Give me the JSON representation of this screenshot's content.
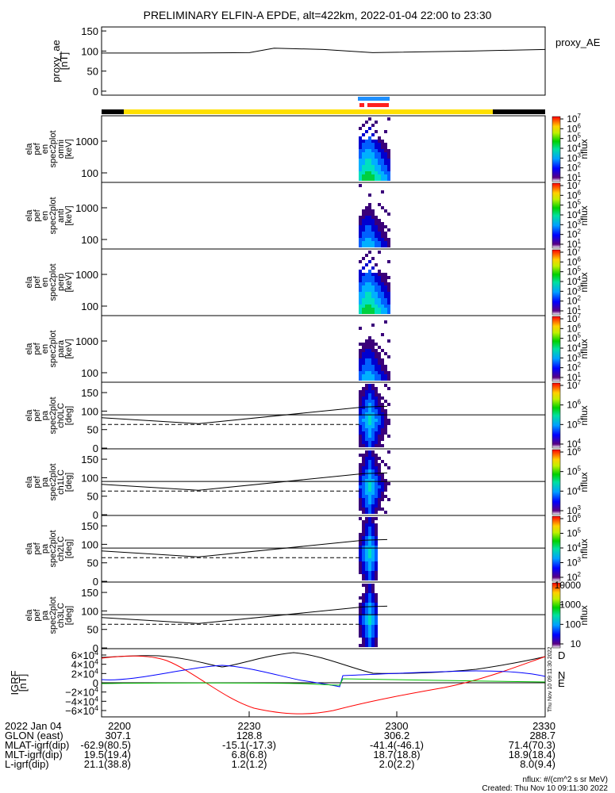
{
  "title": "PRELIMINARY ELFIN-A EPDE, alt=422km, 2022-01-04 22:00 to 23:30",
  "colors": {
    "bar_yellow": "#ffe000",
    "bar_black": "#000000",
    "bar_blue": "#1e90ff",
    "bar_red": "#ff2020",
    "igrf_D": "#ff0000",
    "igrf_N": "#0000ff",
    "igrf_E": "#00c000",
    "igrf_total": "#000000"
  },
  "chart_data": [
    {
      "type": "line",
      "panel": "proxy_ae",
      "ylabel": "proxy_ae\n[nT]",
      "legend": "proxy_AE",
      "ylim": [
        -10,
        160
      ],
      "yticks": [
        "150",
        "100",
        "50",
        "0"
      ],
      "x": [
        "22:00",
        "22:15",
        "22:30",
        "22:35",
        "22:45",
        "22:55",
        "23:00",
        "23:15",
        "23:30"
      ],
      "values": [
        95,
        95,
        96,
        107,
        104,
        96,
        97,
        100,
        104
      ]
    },
    {
      "type": "heatmap",
      "panel": "omni",
      "ylabel": "ela\npef\nen\nspec2plot\nomni\n[keV]",
      "yticks": [
        "1000",
        "100"
      ],
      "zlabel": "nflux",
      "zticks": [
        "10^7",
        "10^6",
        "10^5",
        "10^4",
        "10^3",
        "10^2",
        "10^1"
      ]
    },
    {
      "type": "heatmap",
      "panel": "anti",
      "ylabel": "ela\npef\nen\nspec2plot\nanti\n[keV]",
      "yticks": [
        "1000",
        "100"
      ],
      "zlabel": "nflux",
      "zticks": [
        "10^7",
        "10^6",
        "10^5",
        "10^4",
        "10^3",
        "10^2",
        "10^1"
      ]
    },
    {
      "type": "heatmap",
      "panel": "perp",
      "ylabel": "ela\npef\nen\nspec2plot\nperp\n[keV]",
      "yticks": [
        "1000",
        "100"
      ],
      "zlabel": "nflux",
      "zticks": [
        "10^7",
        "10^6",
        "10^5",
        "10^4",
        "10^3",
        "10^2",
        "10^1"
      ]
    },
    {
      "type": "heatmap",
      "panel": "para",
      "ylabel": "ela\npef\nen\nspec2plot\npara\n[keV]",
      "yticks": [
        "1000",
        "100"
      ],
      "zlabel": "nflux",
      "zticks": [
        "10^7",
        "10^6",
        "10^5",
        "10^4",
        "10^3",
        "10^2",
        "10^1"
      ]
    },
    {
      "type": "heatmap",
      "panel": "ch0LC",
      "ylabel": "ela\npef\npa\nspec2plot\nch0LC\n[deg]",
      "yticks": [
        "150",
        "100",
        "50",
        "0"
      ],
      "zlabel": "nflux",
      "zticks": [
        "10^7",
        "10^6",
        "10^5",
        "10^4"
      ]
    },
    {
      "type": "heatmap",
      "panel": "ch1LC",
      "ylabel": "ela\npef\npa\nspec2plot\nch1LC\n[deg]",
      "yticks": [
        "150",
        "100",
        "50",
        "0"
      ],
      "zlabel": "nflux",
      "zticks": [
        "10^6",
        "10^5",
        "10^4",
        "10^3"
      ]
    },
    {
      "type": "heatmap",
      "panel": "ch2LC",
      "ylabel": "ela\npef\npa\nspec2plot\nch2LC\n[deg]",
      "yticks": [
        "150",
        "100",
        "50",
        "0"
      ],
      "zlabel": "nflux",
      "zticks": [
        "10^6",
        "10^5",
        "10^4",
        "10^3",
        "10^2"
      ]
    },
    {
      "type": "heatmap",
      "panel": "ch3LC",
      "ylabel": "ela\npef\npa\nspec2plot\nch3LC\n[deg]",
      "yticks": [
        "150",
        "100",
        "50",
        "0"
      ],
      "zlabel": "nflux",
      "zticks": [
        "10000",
        "1000",
        "100",
        "10"
      ]
    },
    {
      "type": "line",
      "panel": "igrf",
      "ylabel": "IGRF\n[nT]",
      "ylim": [
        -65000,
        65000
      ],
      "yticks": [
        "6×10^4",
        "4×10^4",
        "2×10^4",
        "0",
        "−2×10^4",
        "−4×10^4",
        "−6×10^4"
      ],
      "series_labels": [
        "D",
        "N",
        "E"
      ]
    }
  ],
  "xaxis": {
    "ticks": [
      "2200",
      "2230",
      "2300",
      "2330"
    ],
    "rows": [
      {
        "label": "2022 Jan 04",
        "values": [
          "2200",
          "2230",
          "2300",
          "2330"
        ]
      },
      {
        "label": "GLON (east)",
        "values": [
          "307.1",
          "128.8",
          "306.2",
          "288.7"
        ]
      },
      {
        "label": "MLAT-igrf(dip)",
        "values": [
          "-62.9(80.5)",
          "-15.1(-17.3)",
          "-41.4(-46.1)",
          "71.4(70.3)"
        ]
      },
      {
        "label": "MLT-igrf(dip)",
        "values": [
          "19.5(19.4)",
          "6.8(6.8)",
          "18.7(18.8)",
          "18.9(18.4)"
        ]
      },
      {
        "label": "L-igrf(dip)",
        "values": [
          "21.1(38.8)",
          "1.2(1.2)",
          "2.0(2.2)",
          "8.0(9.4)"
        ]
      }
    ]
  },
  "footer": {
    "units": "nflux: #/(cm^2 s sr MeV)",
    "created": "Created: Thu Nov 10 09:11:30 2022",
    "side_stamp": "Thu Nov 10 09:11:30 2022"
  }
}
